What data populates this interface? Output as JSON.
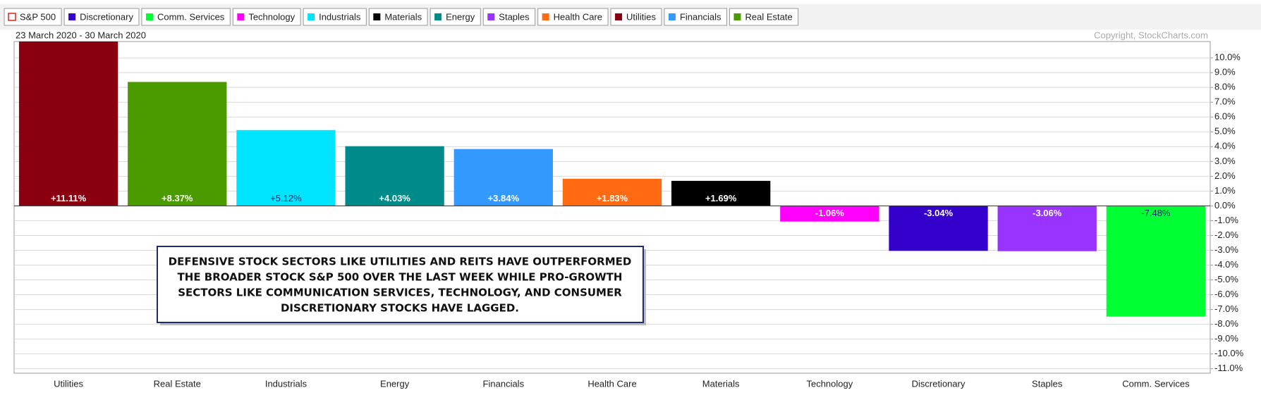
{
  "chart_data": {
    "type": "bar",
    "subtitle": "23 March 2020 - 30 March 2020",
    "credit": "Copyright, StockCharts.com",
    "legend": [
      {
        "name": "S&P 500",
        "color": "#d9261c",
        "style": "outline"
      },
      {
        "name": "Discretionary",
        "color": "#3300cc"
      },
      {
        "name": "Comm. Services",
        "color": "#00ff33"
      },
      {
        "name": "Technology",
        "color": "#ff00ff"
      },
      {
        "name": "Industrials",
        "color": "#00e5ff"
      },
      {
        "name": "Materials",
        "color": "#000000"
      },
      {
        "name": "Energy",
        "color": "#008b8b"
      },
      {
        "name": "Staples",
        "color": "#9933ff"
      },
      {
        "name": "Health Care",
        "color": "#ff6a13"
      },
      {
        "name": "Utilities",
        "color": "#8b0010"
      },
      {
        "name": "Financials",
        "color": "#3399ff"
      },
      {
        "name": "Real Estate",
        "color": "#4a9a00"
      }
    ],
    "categories": [
      "Utilities",
      "Real Estate",
      "Industrials",
      "Energy",
      "Financials",
      "Health Care",
      "Materials",
      "Technology",
      "Discretionary",
      "Staples",
      "Comm. Services"
    ],
    "values": [
      11.11,
      8.37,
      5.12,
      4.03,
      3.84,
      1.83,
      1.69,
      -1.06,
      -3.04,
      -3.06,
      -7.48
    ],
    "value_labels": [
      "+11.11%",
      "+8.37%",
      "+5.12%",
      "+4.03%",
      "+3.84%",
      "+1.83%",
      "+1.69%",
      "-1.06%",
      "-3.04%",
      "-3.06%",
      "-7.48%"
    ],
    "colors": [
      "#8b0010",
      "#4a9a00",
      "#00e5ff",
      "#008b8b",
      "#3399ff",
      "#ff6a13",
      "#000000",
      "#ff00ff",
      "#3300cc",
      "#9933ff",
      "#00ff33"
    ],
    "ylim": [
      -11.3,
      11.1
    ],
    "yticks": [
      {
        "value": 10,
        "label": "10.0%"
      },
      {
        "value": 9,
        "label": "9.0%"
      },
      {
        "value": 8,
        "label": "8.0%"
      },
      {
        "value": 7,
        "label": "7.0%"
      },
      {
        "value": 6,
        "label": "6.0%"
      },
      {
        "value": 5,
        "label": "5.0%"
      },
      {
        "value": 4,
        "label": "4.0%"
      },
      {
        "value": 3,
        "label": "3.0%"
      },
      {
        "value": 2,
        "label": "2.0%"
      },
      {
        "value": 1,
        "label": "1.0%"
      },
      {
        "value": 0,
        "label": "0.0%"
      },
      {
        "value": -1,
        "label": "-1.0%"
      },
      {
        "value": -2,
        "label": "-2.0%"
      },
      {
        "value": -3,
        "label": "-3.0%"
      },
      {
        "value": -4,
        "label": "-4.0%"
      },
      {
        "value": -5,
        "label": "-5.0%"
      },
      {
        "value": -6,
        "label": "-6.0%"
      },
      {
        "value": -7,
        "label": "-7.0%"
      },
      {
        "value": -8,
        "label": "-8.0%"
      },
      {
        "value": -9,
        "label": "-9.0%"
      },
      {
        "value": -10,
        "label": "-10.0%"
      },
      {
        "value": -11,
        "label": "-11.0%"
      }
    ],
    "grid": true,
    "annotation": [
      "DEFENSIVE STOCK SECTORS LIKE UTILITIES AND REITS HAVE OUTPERFORMED",
      "THE BROADER STOCK S&P 500 OVER THE LAST WEEK WHILE PRO-GROWTH",
      "SECTORS LIKE COMMUNICATION SERVICES, TECHNOLOGY, AND CONSUMER",
      "DISCRETIONARY STOCKS HAVE LAGGED."
    ]
  }
}
